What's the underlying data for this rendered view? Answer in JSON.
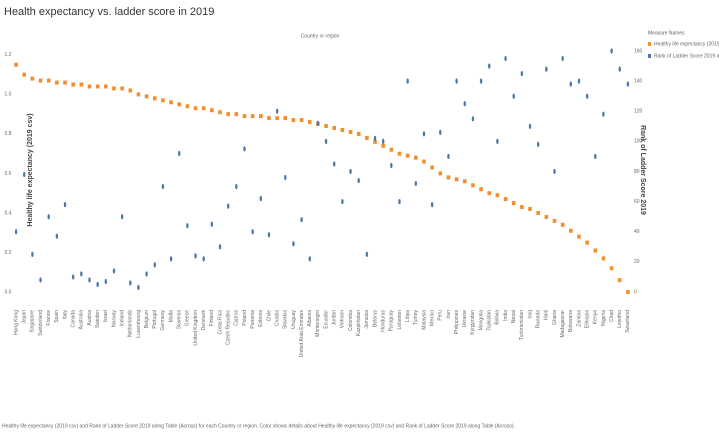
{
  "chart_data": {
    "type": "dual_axis_dot",
    "title": "Health expectancy vs. ladder score in 2019",
    "column_header": "Country or region",
    "y_label": "Healthy life expectancy (2019 csv)",
    "y2_label": "Rank of Ladder Score 2019",
    "legend_title": "Measure Names",
    "legend_position": "top-right",
    "footer": "Healthy life expectancy (2019 csv) and Rank of Ladder Score 2019 along Table (Across) for each Country or region. Color shows details about Healthy life expectancy (2019 csv) and Rank of Ladder Score 2019 along Table (Across).",
    "categories": [
      "Hong Kong",
      "Japan",
      "Singapore",
      "Switzerland",
      "France",
      "Spain",
      "Italy",
      "Canada",
      "Australia",
      "Austria",
      "Sweden",
      "Israel",
      "Norway",
      "Iceland",
      "Netherlands",
      "Luxembourg",
      "Belgium",
      "Portugal",
      "Germany",
      "Malta",
      "Slovenia",
      "Greece",
      "United Kingdom",
      "Denmark",
      "Finland",
      "Costa Rica",
      "Czech Republic",
      "Cyprus",
      "Poland",
      "Panama",
      "Estonia",
      "Chile",
      "Croatia",
      "Slovakia",
      "Uruguay",
      "United Arab Emirates",
      "Albania",
      "Montenegro",
      "Ecuador",
      "Jordan",
      "Vietnam",
      "Colombia",
      "Kazakhstan",
      "Jamaica",
      "Belarus",
      "Honduras",
      "Paraguay",
      "Lebanon",
      "Libya",
      "Turkey",
      "Malaysia",
      "Mexico",
      "Peru",
      "Iran",
      "Philippines",
      "Ukraine",
      "Kyrgyzstan",
      "Mongolia",
      "Tajikistan",
      "Bolivia",
      "India",
      "Nepal",
      "Turkmenistan",
      "Iraq",
      "Rwanda",
      "Haiti",
      "Ghana",
      "Madagascar",
      "Botswana",
      "Zambia",
      "Ethiopia",
      "Kenya",
      "Nigeria",
      "Chad",
      "Lesotho",
      "Swaziland"
    ],
    "series": [
      {
        "name": "Healthy life expectancy (2019 csv)",
        "color": "#f28e2b",
        "axis": "y",
        "values": [
          1.15,
          1.1,
          1.08,
          1.07,
          1.07,
          1.06,
          1.06,
          1.05,
          1.05,
          1.04,
          1.04,
          1.04,
          1.03,
          1.03,
          1.02,
          1.0,
          0.99,
          0.98,
          0.97,
          0.96,
          0.95,
          0.94,
          0.93,
          0.93,
          0.92,
          0.91,
          0.9,
          0.9,
          0.89,
          0.89,
          0.89,
          0.88,
          0.88,
          0.88,
          0.87,
          0.87,
          0.86,
          0.85,
          0.84,
          0.83,
          0.82,
          0.81,
          0.8,
          0.78,
          0.76,
          0.74,
          0.72,
          0.7,
          0.69,
          0.68,
          0.66,
          0.63,
          0.6,
          0.58,
          0.57,
          0.56,
          0.54,
          0.52,
          0.5,
          0.49,
          0.47,
          0.45,
          0.43,
          0.42,
          0.4,
          0.38,
          0.36,
          0.34,
          0.31,
          0.28,
          0.25,
          0.21,
          0.17,
          0.12,
          0.06,
          0.0
        ]
      },
      {
        "name": "Rank of Ladder Score 2019 along Table (Across)",
        "color": "#4e79a7",
        "axis": "y2",
        "values": [
          40,
          78,
          25,
          8,
          50,
          37,
          58,
          10,
          12,
          8,
          5,
          7,
          14,
          50,
          6,
          3,
          12,
          18,
          70,
          22,
          92,
          44,
          24,
          22,
          45,
          30,
          57,
          70,
          95,
          40,
          62,
          38,
          120,
          76,
          32,
          48,
          22,
          112,
          100,
          85,
          60,
          80,
          74,
          25,
          102,
          100,
          84,
          60,
          140,
          72,
          105,
          58,
          106,
          90,
          140,
          125,
          115,
          140,
          150,
          100,
          155,
          130,
          145,
          110,
          98,
          148,
          80,
          155,
          138,
          140,
          130,
          90,
          118,
          160,
          148,
          138
        ]
      }
    ],
    "ylim": [
      0,
      1.25
    ],
    "yticks": [
      {
        "value": 0,
        "label": "0.0"
      },
      {
        "value": 0.2,
        "label": "0.2"
      },
      {
        "value": 0.4,
        "label": "0.4"
      },
      {
        "value": 0.6,
        "label": "0.6"
      },
      {
        "value": 0.8,
        "label": "0.8"
      },
      {
        "value": 1,
        "label": "1.0"
      },
      {
        "value": 1.2,
        "label": "1.2"
      }
    ],
    "y2lim": [
      0,
      164
    ],
    "y2ticks": [
      0,
      20,
      40,
      60,
      80,
      100,
      120,
      140,
      160
    ],
    "grid": false
  }
}
